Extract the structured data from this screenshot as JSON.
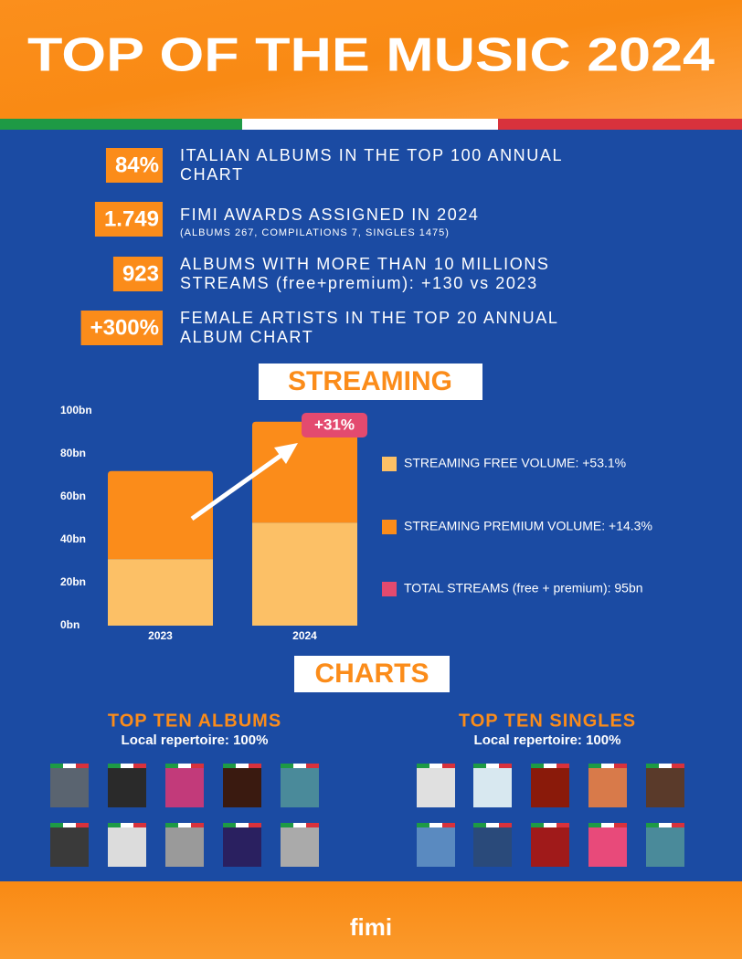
{
  "header": {
    "title": "TOP OF THE MUSIC 2024"
  },
  "stats": [
    {
      "value": "84%",
      "lines": [
        "ITALIAN ALBUMS IN THE TOP 100 ANNUAL",
        "CHART"
      ]
    },
    {
      "value": "1.749",
      "lines": [
        "FIMI AWARDS ASSIGNED IN 2024"
      ],
      "note": "(ALBUMS 267, COMPILATIONS 7, SINGLES 1475)"
    },
    {
      "value": "923",
      "lines": [
        "ALBUMS WITH MORE THAN 10 MILLIONS",
        "STREAMS (free+premium): +130 vs 2023"
      ]
    },
    {
      "value": "+300%",
      "lines": [
        "FEMALE ARTISTS IN THE TOP 20 ANNUAL",
        "ALBUM CHART"
      ]
    }
  ],
  "chart_data": {
    "type": "stacked-bar",
    "title": "STREAMING",
    "categories": [
      "2023",
      "2024"
    ],
    "series": [
      {
        "name": "STREAMING FREE VOLUME: +53.1%",
        "color": "#fcc066",
        "values": [
          31,
          48
        ]
      },
      {
        "name": "STREAMING PREMIUM VOLUME: +14.3%",
        "color": "#fb8c1a",
        "values": [
          41,
          47
        ]
      }
    ],
    "ylim": [
      0,
      100
    ],
    "yticks": [
      {
        "value": 0,
        "label": "0bn"
      },
      {
        "value": 20,
        "label": "20bn"
      },
      {
        "value": 40,
        "label": "40bn"
      },
      {
        "value": 60,
        "label": "60bn"
      },
      {
        "value": 80,
        "label": "80bn"
      },
      {
        "value": 100,
        "label": "100bn"
      }
    ],
    "annotation": "+31%",
    "total": {
      "label": "TOTAL STREAMS (free + premium): 95bn",
      "color": "#e34a6f"
    }
  },
  "charts": {
    "title": "CHARTS",
    "albums": {
      "title": "TOP TEN ALBUMS",
      "subtitle": "Local repertoire: 100%"
    },
    "singles": {
      "title": "TOP TEN SINGLES",
      "subtitle": "Local repertoire: 100%"
    }
  },
  "footer": {
    "logo": "fimi"
  }
}
